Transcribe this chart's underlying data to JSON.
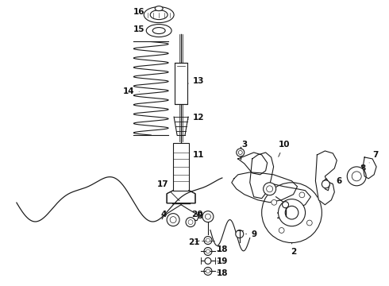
{
  "background_color": "#ffffff",
  "line_color": "#1a1a1a",
  "label_color": "#111111",
  "font_size": 7.5,
  "fig_width": 4.9,
  "fig_height": 3.6,
  "dpi": 100
}
